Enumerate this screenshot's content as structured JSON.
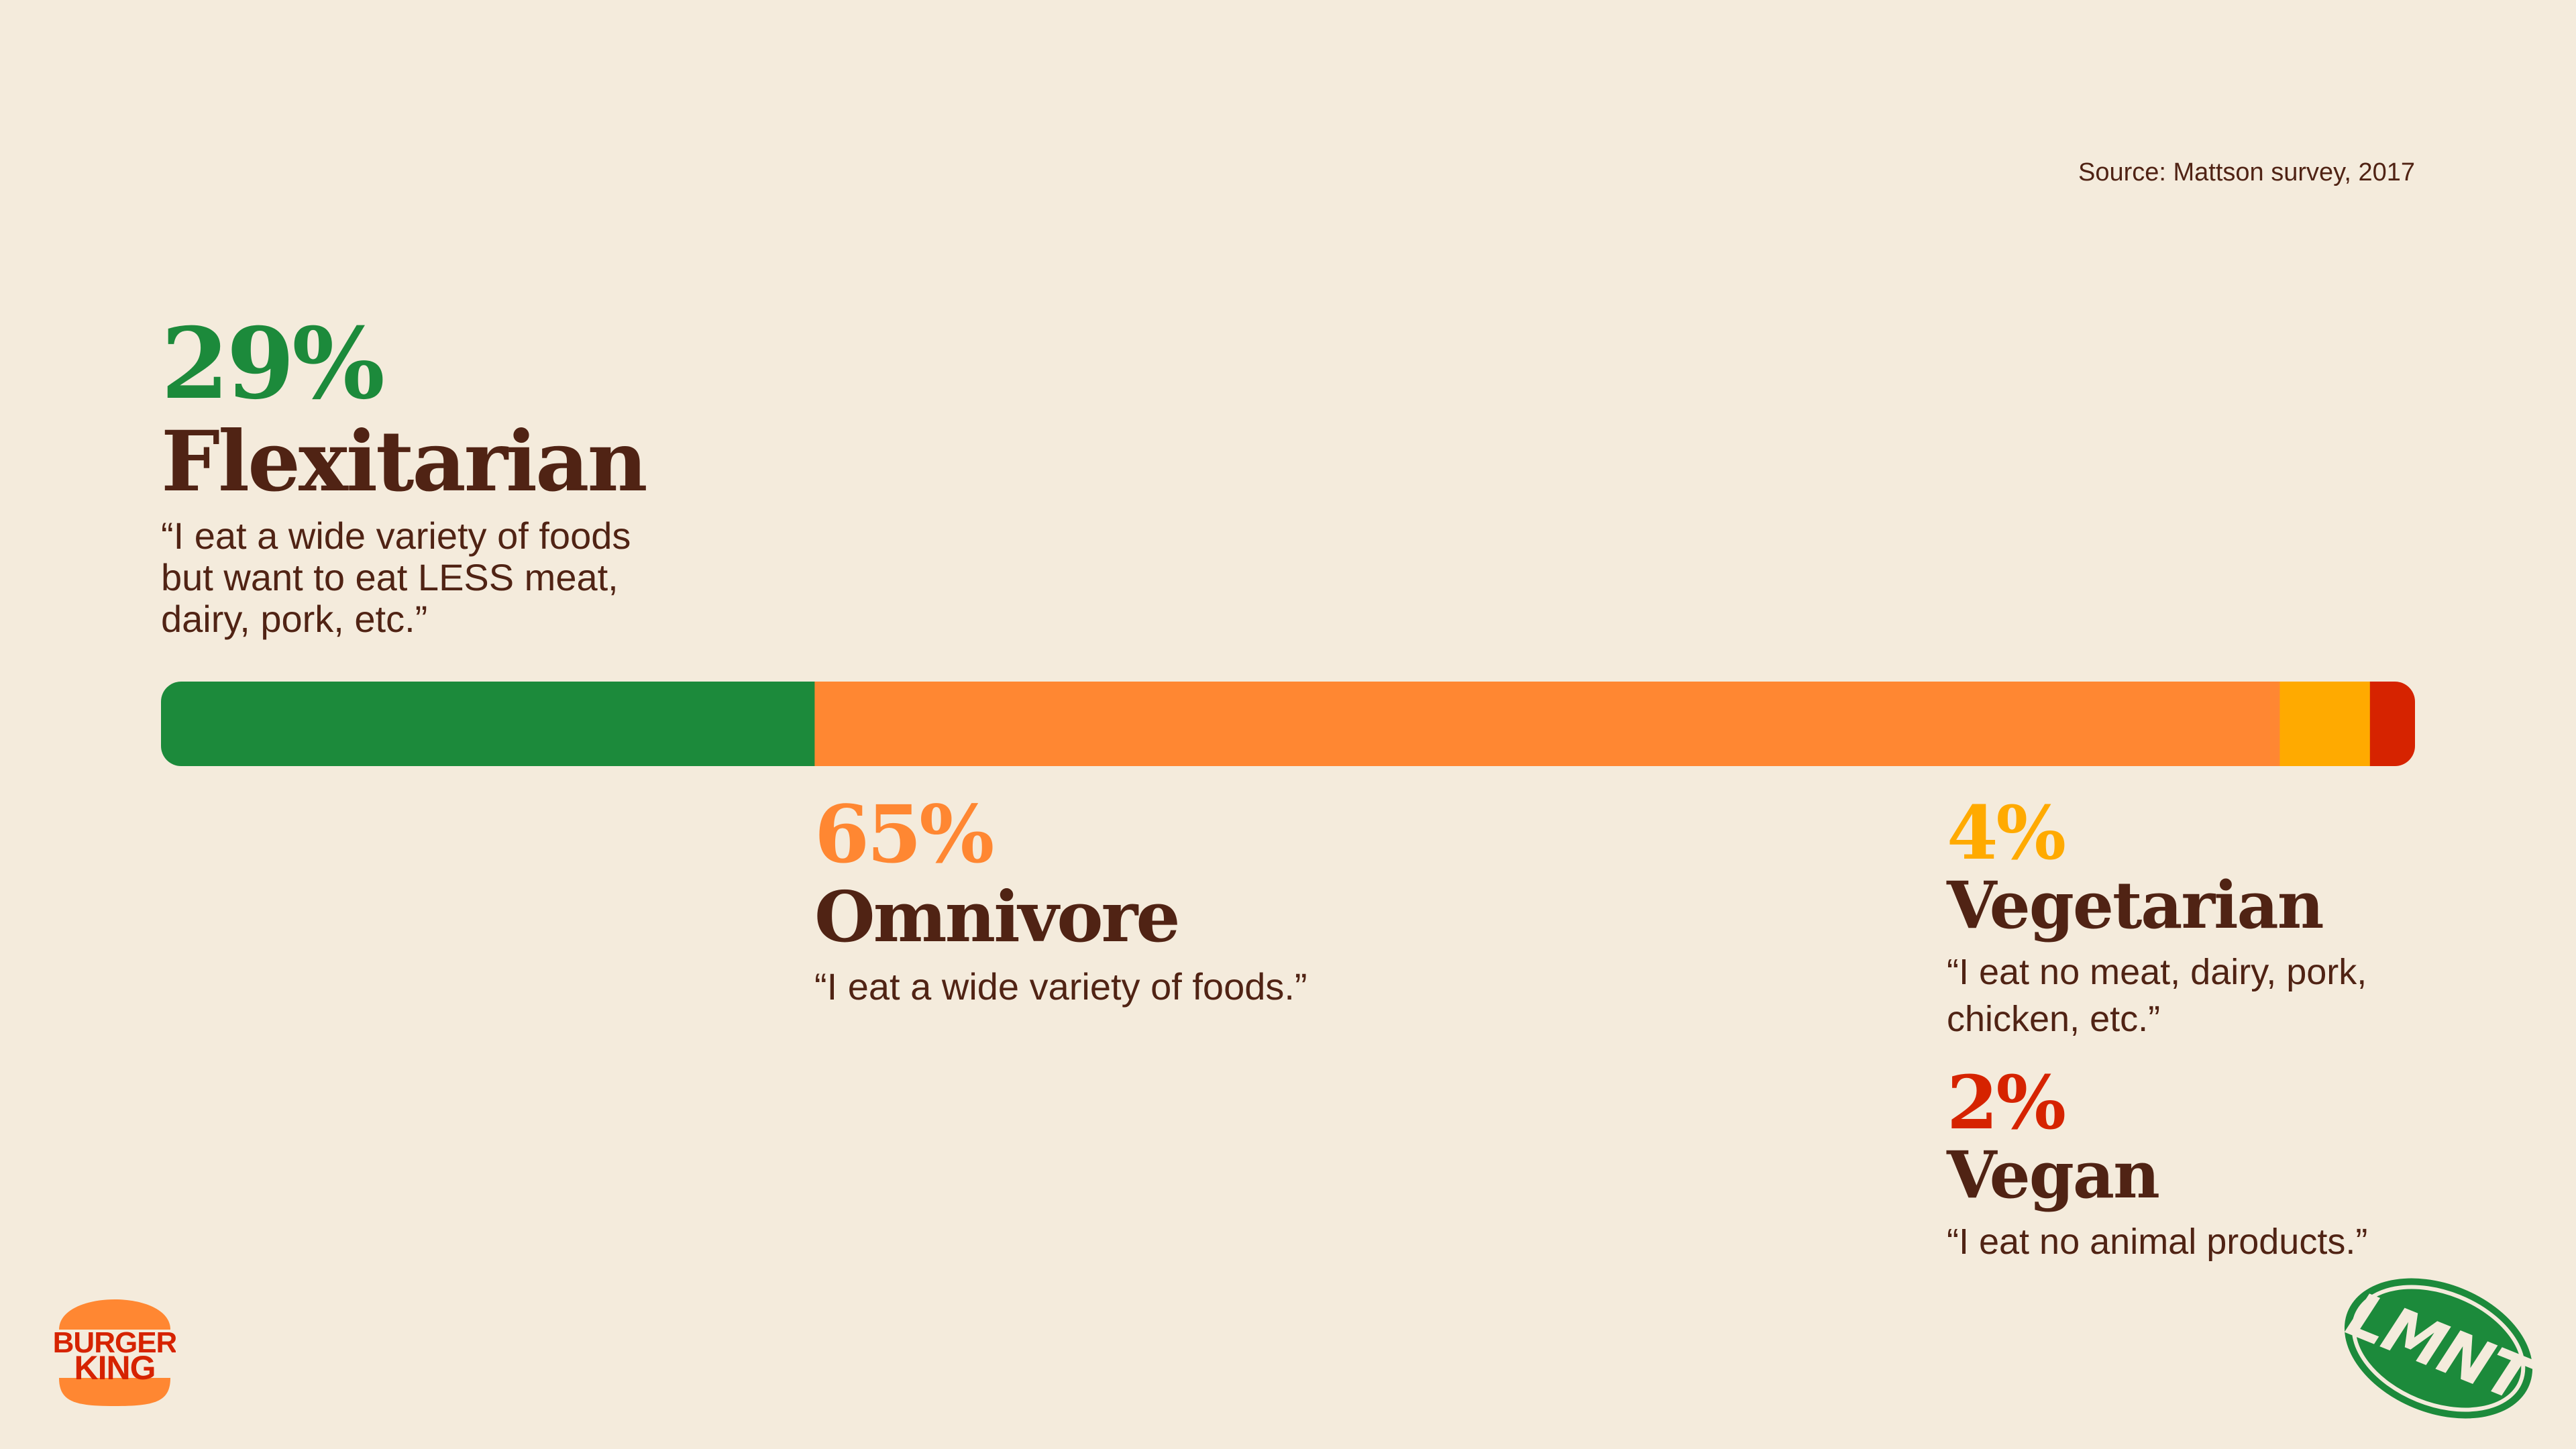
{
  "source": "Source: Mattson survey, 2017",
  "chart_data": {
    "type": "bar",
    "orientation": "horizontal-stacked",
    "categories": [
      "Flexitarian",
      "Omnivore",
      "Vegetarian",
      "Vegan"
    ],
    "values": [
      29,
      65,
      4,
      2
    ],
    "unit": "%",
    "percent_labels": [
      "29%",
      "65%",
      "4%",
      "2%"
    ],
    "quotes": [
      "“I eat a wide variety of foods but want to eat LESS meat, dairy, pork, etc.”",
      "“I eat a wide variety of foods.”",
      "“I eat no meat, dairy, pork, chicken, etc.”",
      "“I eat no animal products.”"
    ],
    "colors": [
      "#1c8a3b",
      "#ff8732",
      "#ffaa00",
      "#d62300"
    ],
    "label_color": "#502314",
    "background": "#f4ebdc",
    "grid": false
  },
  "logos": {
    "burger_king": {
      "line1": "BURGER",
      "line2": "KING",
      "bun_color": "#ff8732",
      "text_color": "#d62300"
    },
    "lmnt": {
      "text": "LMNT",
      "color": "#1c8a3b"
    }
  }
}
